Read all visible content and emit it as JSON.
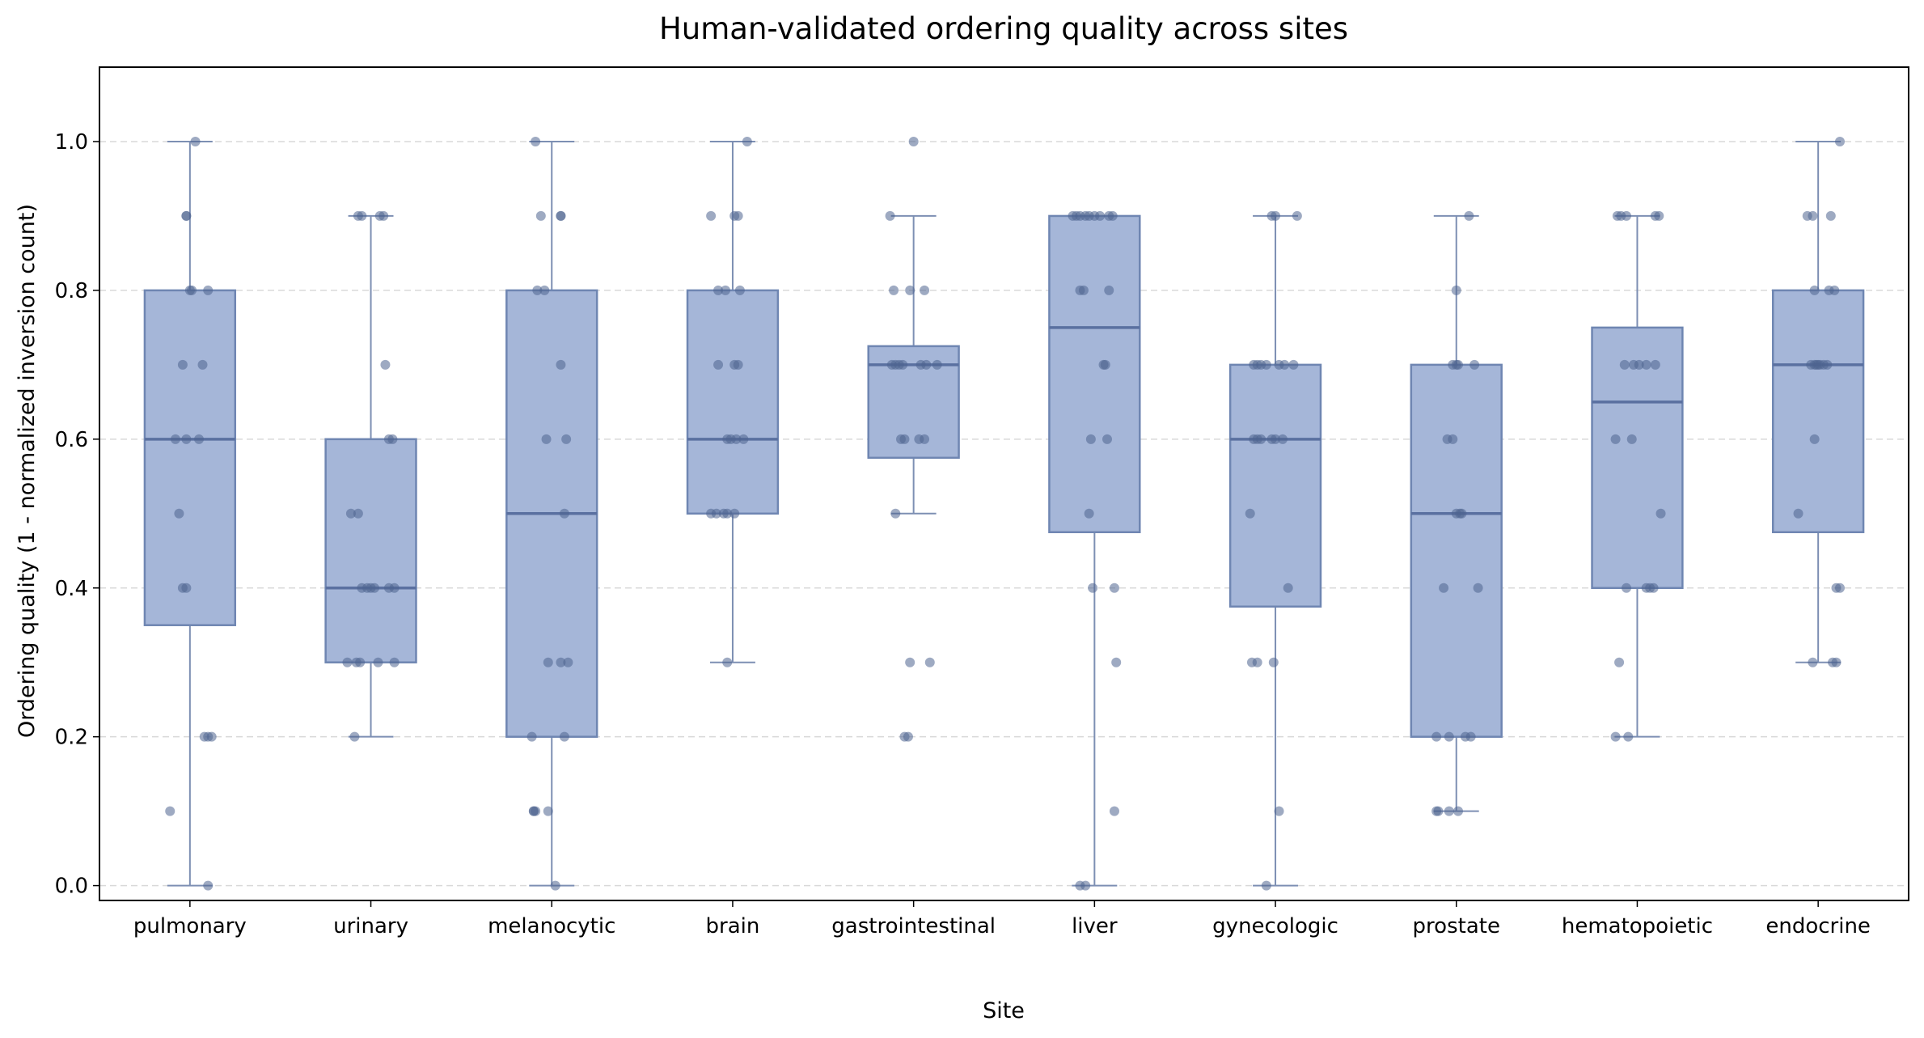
{
  "chart_data": {
    "type": "box",
    "title": "Human-validated ordering quality across sites",
    "xlabel": "Site",
    "ylabel": "Ordering quality (1 - normalized inversion count)",
    "ylim": [
      -0.02,
      1.1
    ],
    "yticks": [
      "0.0",
      "0.2",
      "0.4",
      "0.6",
      "0.8",
      "1.0"
    ],
    "grid": "horizontal dashed",
    "colors": {
      "box_fill": "#a5b6d8",
      "box_edge": "#6f86b2",
      "median": "#5a70a0",
      "whisker": "#7d8fb3",
      "point": "#4e6590"
    },
    "categories": [
      "pulmonary",
      "urinary",
      "melanocytic",
      "brain",
      "gastrointestinal",
      "liver",
      "gynecologic",
      "prostate",
      "hematopoietic",
      "endocrine"
    ],
    "boxes": [
      {
        "q1": 0.35,
        "median": 0.6,
        "q3": 0.8,
        "whisker_low": 0.0,
        "whisker_high": 1.0
      },
      {
        "q1": 0.3,
        "median": 0.4,
        "q3": 0.6,
        "whisker_low": 0.2,
        "whisker_high": 0.9
      },
      {
        "q1": 0.2,
        "median": 0.5,
        "q3": 0.8,
        "whisker_low": 0.0,
        "whisker_high": 1.0
      },
      {
        "q1": 0.5,
        "median": 0.6,
        "q3": 0.8,
        "whisker_low": 0.3,
        "whisker_high": 1.0
      },
      {
        "q1": 0.575,
        "median": 0.7,
        "q3": 0.725,
        "whisker_low": 0.5,
        "whisker_high": 0.9
      },
      {
        "q1": 0.475,
        "median": 0.75,
        "q3": 0.9,
        "whisker_low": 0.0,
        "whisker_high": 0.9
      },
      {
        "q1": 0.375,
        "median": 0.6,
        "q3": 0.7,
        "whisker_low": 0.0,
        "whisker_high": 0.9
      },
      {
        "q1": 0.2,
        "median": 0.5,
        "q3": 0.7,
        "whisker_low": 0.1,
        "whisker_high": 0.9
      },
      {
        "q1": 0.4,
        "median": 0.65,
        "q3": 0.75,
        "whisker_low": 0.2,
        "whisker_high": 0.9
      },
      {
        "q1": 0.475,
        "median": 0.7,
        "q3": 0.8,
        "whisker_low": 0.3,
        "whisker_high": 1.0
      }
    ],
    "points": [
      {
        "dx": [
          0.03,
          -0.02,
          -0.02,
          0.0,
          0.01,
          0.1,
          -0.04,
          0.07,
          -0.08,
          -0.02,
          0.05,
          -0.06,
          -0.04,
          -0.02,
          0.08,
          0.12,
          0.1,
          -0.11,
          0.1
        ],
        "y": [
          1.0,
          0.9,
          0.9,
          0.8,
          0.8,
          0.8,
          0.7,
          0.7,
          0.6,
          0.6,
          0.6,
          0.5,
          0.4,
          0.4,
          0.2,
          0.2,
          0.2,
          0.1,
          0.0
        ]
      },
      {
        "dx": [
          -0.07,
          -0.05,
          0.05,
          0.07,
          0.08,
          0.1,
          0.12,
          -0.11,
          -0.07,
          -0.05,
          -0.02,
          0.0,
          0.02,
          0.1,
          0.13,
          -0.13,
          -0.08,
          -0.06,
          0.04,
          0.13,
          -0.09
        ],
        "y": [
          0.9,
          0.9,
          0.9,
          0.9,
          0.7,
          0.6,
          0.6,
          0.5,
          0.5,
          0.4,
          0.4,
          0.4,
          0.4,
          0.4,
          0.4,
          0.3,
          0.3,
          0.3,
          0.3,
          0.3,
          0.2
        ]
      },
      {
        "dx": [
          -0.09,
          -0.06,
          0.05,
          0.05,
          -0.08,
          -0.04,
          0.05,
          -0.03,
          0.08,
          0.07,
          -0.02,
          0.05,
          0.09,
          -0.11,
          -0.09,
          0.07,
          -0.1,
          -0.1,
          -0.02,
          0.02
        ],
        "y": [
          1.0,
          0.9,
          0.9,
          0.9,
          0.8,
          0.8,
          0.7,
          0.6,
          0.6,
          0.5,
          0.3,
          0.3,
          0.3,
          0.2,
          0.1,
          0.2,
          0.1,
          0.1,
          0.1,
          0.0
        ]
      },
      {
        "dx": [
          0.08,
          -0.12,
          0.01,
          0.03,
          -0.08,
          -0.04,
          0.04,
          -0.08,
          0.01,
          0.03,
          -0.03,
          -0.01,
          0.02,
          0.06,
          -0.12,
          -0.09,
          -0.05,
          -0.03,
          0.01,
          -0.03
        ],
        "y": [
          1.0,
          0.9,
          0.9,
          0.9,
          0.8,
          0.8,
          0.8,
          0.7,
          0.7,
          0.7,
          0.6,
          0.6,
          0.6,
          0.6,
          0.5,
          0.5,
          0.5,
          0.5,
          0.5,
          0.3
        ]
      },
      {
        "dx": [
          0.0,
          -0.13,
          -0.11,
          -0.02,
          0.06,
          -0.12,
          -0.1,
          -0.08,
          -0.06,
          0.04,
          0.07,
          0.13,
          -0.07,
          -0.05,
          0.03,
          0.06,
          -0.1,
          -0.02,
          0.09,
          -0.05,
          -0.03
        ],
        "y": [
          1.0,
          0.9,
          0.8,
          0.8,
          0.8,
          0.7,
          0.7,
          0.7,
          0.7,
          0.7,
          0.7,
          0.7,
          0.6,
          0.6,
          0.6,
          0.6,
          0.5,
          0.3,
          0.3,
          0.2,
          0.2
        ]
      },
      {
        "dx": [
          -0.12,
          -0.1,
          -0.08,
          -0.05,
          -0.03,
          0.0,
          0.03,
          0.08,
          0.1,
          -0.08,
          -0.06,
          0.08,
          0.05,
          0.06,
          -0.02,
          0.07,
          -0.03,
          -0.01,
          0.11,
          0.12,
          0.11,
          -0.08,
          -0.05
        ],
        "y": [
          0.9,
          0.9,
          0.9,
          0.9,
          0.9,
          0.9,
          0.9,
          0.9,
          0.9,
          0.8,
          0.8,
          0.8,
          0.7,
          0.7,
          0.6,
          0.6,
          0.5,
          0.4,
          0.4,
          0.3,
          0.1,
          0.0,
          0.0
        ]
      },
      {
        "dx": [
          -0.02,
          0.0,
          0.12,
          -0.12,
          -0.1,
          -0.08,
          -0.05,
          0.02,
          0.05,
          0.1,
          -0.12,
          -0.1,
          -0.08,
          -0.02,
          0.0,
          0.04,
          -0.14,
          0.07,
          -0.13,
          -0.1,
          -0.01,
          0.02,
          -0.05
        ],
        "y": [
          0.9,
          0.9,
          0.9,
          0.7,
          0.7,
          0.7,
          0.7,
          0.7,
          0.7,
          0.7,
          0.6,
          0.6,
          0.6,
          0.6,
          0.6,
          0.6,
          0.5,
          0.4,
          0.3,
          0.3,
          0.3,
          0.1,
          0.0
        ]
      },
      {
        "dx": [
          0.07,
          0.0,
          -0.02,
          0.0,
          0.01,
          0.1,
          -0.05,
          -0.02,
          0.0,
          0.02,
          0.03,
          -0.07,
          0.12,
          -0.11,
          -0.04,
          0.05,
          0.08,
          -0.11,
          -0.1,
          -0.04,
          0.01
        ],
        "y": [
          0.9,
          0.8,
          0.7,
          0.7,
          0.7,
          0.7,
          0.6,
          0.6,
          0.5,
          0.5,
          0.5,
          0.4,
          0.4,
          0.2,
          0.2,
          0.2,
          0.2,
          0.1,
          0.1,
          0.1,
          0.1
        ]
      },
      {
        "dx": [
          -0.11,
          -0.09,
          -0.06,
          0.1,
          0.12,
          -0.07,
          -0.02,
          0.01,
          0.05,
          0.1,
          -0.12,
          -0.03,
          0.13,
          -0.06,
          0.05,
          0.07,
          0.09,
          -0.1,
          -0.12,
          -0.05
        ],
        "y": [
          0.9,
          0.9,
          0.9,
          0.9,
          0.9,
          0.7,
          0.7,
          0.7,
          0.7,
          0.7,
          0.6,
          0.6,
          0.5,
          0.4,
          0.4,
          0.4,
          0.4,
          0.3,
          0.2,
          0.2
        ]
      },
      {
        "dx": [
          0.12,
          -0.06,
          -0.03,
          0.07,
          -0.02,
          0.06,
          0.09,
          -0.04,
          -0.02,
          -0.01,
          0.0,
          0.01,
          0.03,
          0.05,
          -0.02,
          -0.11,
          0.1,
          0.12,
          -0.03,
          0.08,
          0.1
        ],
        "y": [
          1.0,
          0.9,
          0.9,
          0.9,
          0.8,
          0.8,
          0.8,
          0.7,
          0.7,
          0.7,
          0.7,
          0.7,
          0.7,
          0.7,
          0.6,
          0.5,
          0.4,
          0.4,
          0.3,
          0.3,
          0.3
        ]
      }
    ]
  }
}
